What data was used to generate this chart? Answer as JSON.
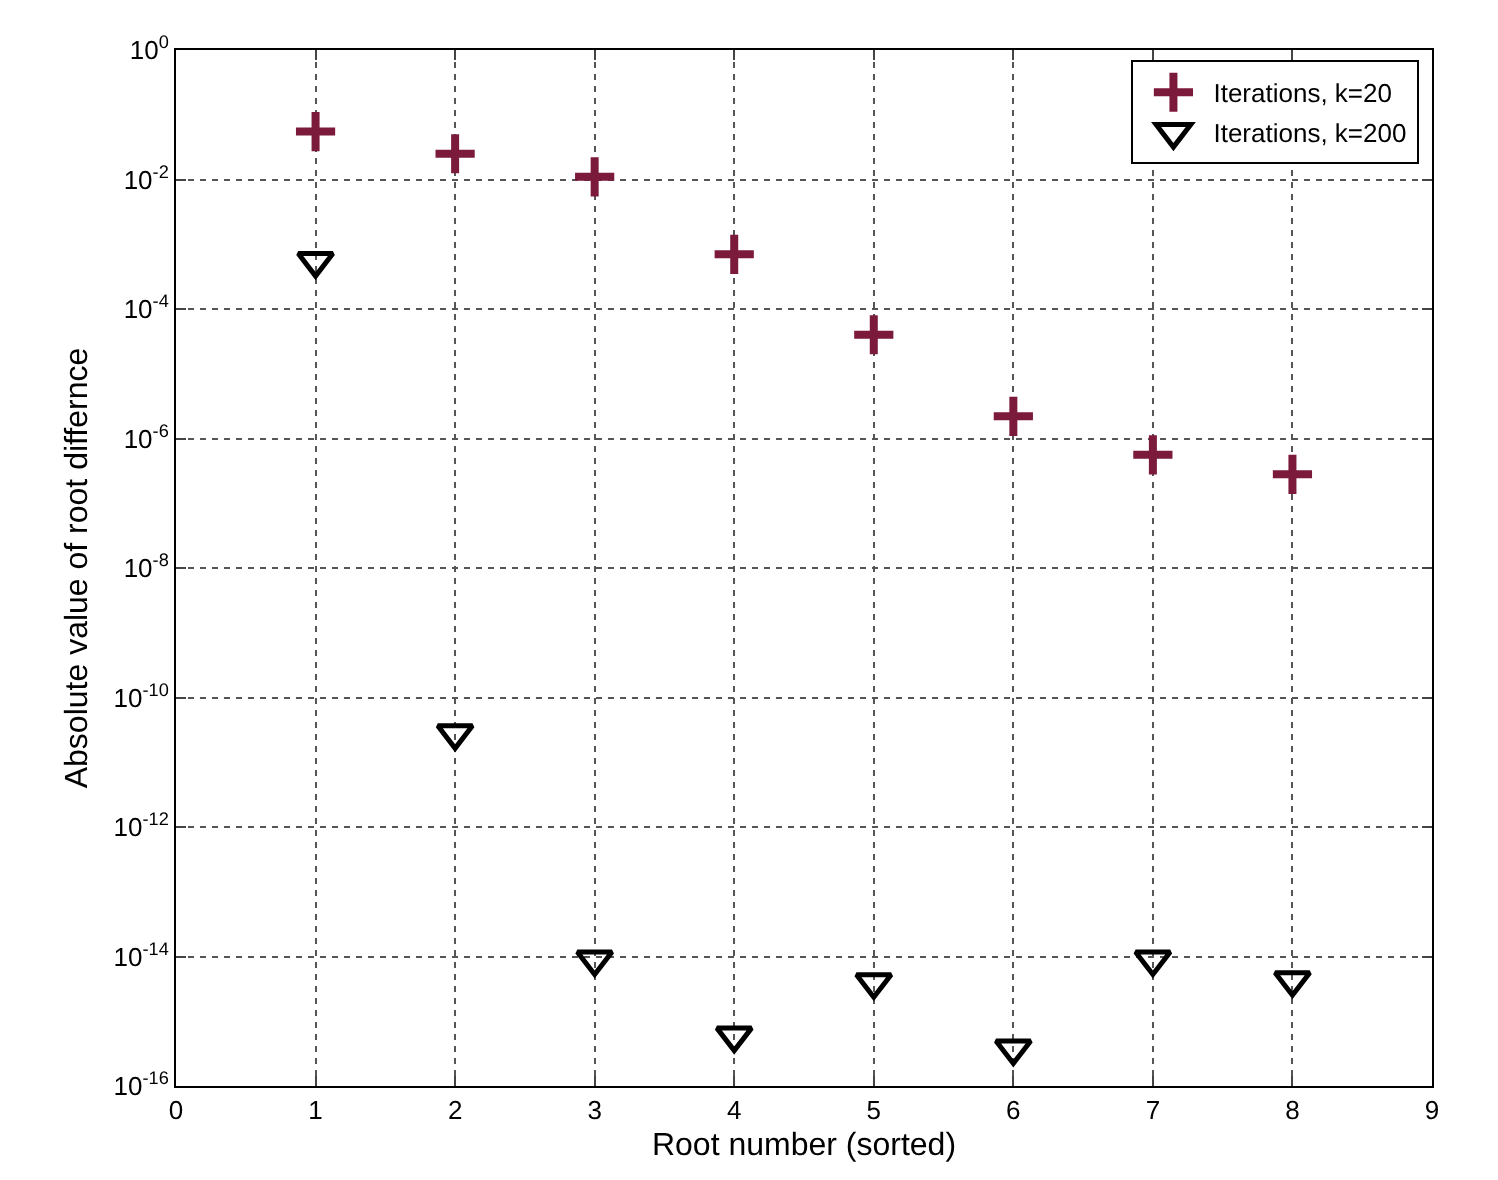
{
  "chart_data": {
    "type": "scatter",
    "xlabel": "Root number (sorted)",
    "ylabel": "Absolute value of root differnce",
    "x": [
      1,
      2,
      3,
      4,
      5,
      6,
      7,
      8
    ],
    "series": [
      {
        "name": "Iterations, k=20",
        "color": "#7b1a3a",
        "marker": "cross",
        "values": [
          0.055,
          0.025,
          0.011,
          0.0007,
          4e-05,
          2.2e-06,
          5.6e-07,
          2.8e-07
        ]
      },
      {
        "name": "Iterations, k=200",
        "color": "#000000",
        "marker": "triangle",
        "values": [
          0.00055,
          2.8e-11,
          9e-15,
          6e-16,
          4e-15,
          3.8e-16,
          9e-15,
          4.3e-15
        ]
      }
    ],
    "log": "y",
    "xlim": [
      0,
      9
    ],
    "xticks": [
      0,
      1,
      2,
      3,
      4,
      5,
      6,
      7,
      8,
      9
    ],
    "ylim": [
      1e-16,
      1
    ],
    "yticks": [
      {
        "value": 1e-16,
        "label": "10$^{-16}$"
      },
      {
        "value": 1e-14,
        "label": "10$^{-14}$"
      },
      {
        "value": 1e-12,
        "label": "10$^{-12}$"
      },
      {
        "value": 1e-10,
        "label": "10$^{-10}$"
      },
      {
        "value": 1e-08,
        "label": "10$^{-8}$"
      },
      {
        "value": 1e-06,
        "label": "10$^{-6}$"
      },
      {
        "value": 0.0001,
        "label": "10$^{-4}$"
      },
      {
        "value": 0.01,
        "label": "10$^{-2}$"
      },
      {
        "value": 1,
        "label": "10$^{0}$"
      }
    ],
    "grid": true,
    "legend": "top right"
  }
}
